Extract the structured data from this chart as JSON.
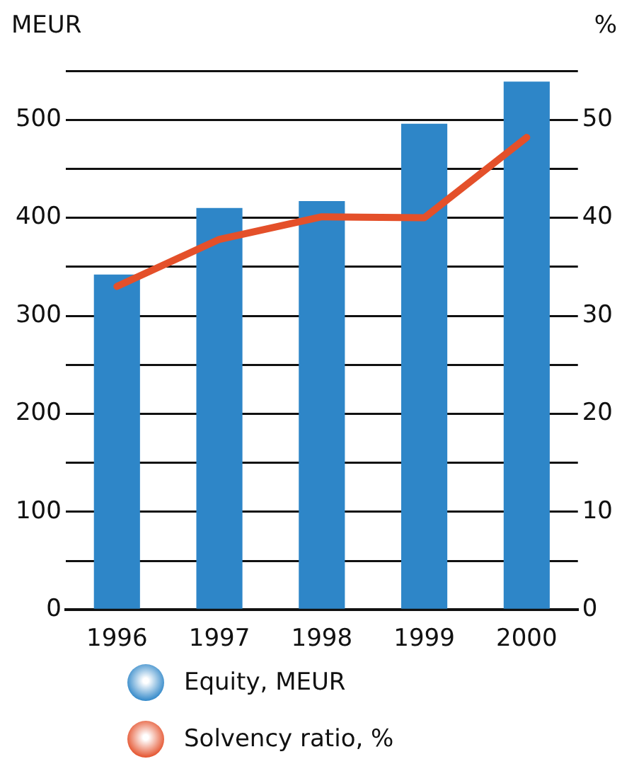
{
  "chart_data": {
    "type": "bar",
    "ylabel": "MEUR",
    "y2label": "%",
    "categories": [
      "1996",
      "1997",
      "1998",
      "1999",
      "2000"
    ],
    "series": [
      {
        "name": "Equity, MEUR",
        "color": "#2e86c8",
        "values": [
          342,
          410,
          417,
          496,
          539
        ]
      },
      {
        "name": "Solvency ratio, %",
        "type": "line",
        "axis": "y2",
        "color": "#e4502a",
        "values": [
          33,
          37.8,
          40.1,
          40,
          48.2
        ]
      }
    ],
    "ylim": [
      0,
      550
    ],
    "yticks": [
      0,
      {
        "value": 50,
        "label": null
      },
      100,
      {
        "value": 150,
        "label": null
      },
      200,
      {
        "value": 250,
        "label": null
      },
      300,
      {
        "value": 350,
        "label": null
      },
      400,
      {
        "value": 450,
        "label": null
      },
      500,
      {
        "value": 550,
        "label": null
      }
    ],
    "y2lim": [
      0,
      55
    ],
    "y2ticks": [
      0,
      10,
      20,
      30,
      40,
      50
    ],
    "grid": "y",
    "legend": "bottom",
    "marker": "none",
    "line_style": "solid"
  }
}
